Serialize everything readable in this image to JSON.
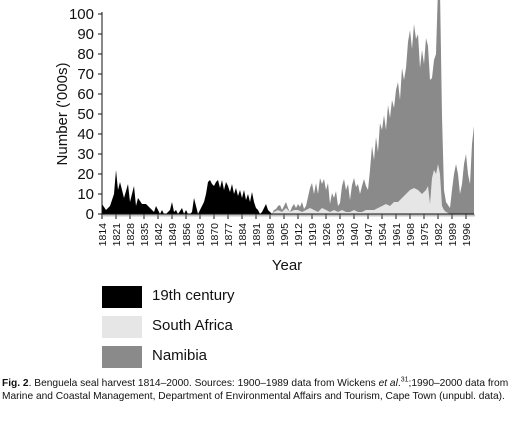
{
  "chart_data": {
    "type": "area",
    "title": "",
    "xlabel": "Year",
    "ylabel": "Number ('000s)",
    "xlim": [
      1814,
      2000
    ],
    "ylim": [
      0,
      100
    ],
    "yticks": [
      0,
      10,
      20,
      30,
      40,
      50,
      60,
      70,
      80,
      90,
      100
    ],
    "xticks": [
      1814,
      1821,
      1828,
      1835,
      1842,
      1849,
      1856,
      1863,
      1870,
      1877,
      1884,
      1891,
      1898,
      1905,
      1912,
      1919,
      1926,
      1933,
      1940,
      1947,
      1954,
      1961,
      1968,
      1975,
      1982,
      1989,
      1996
    ],
    "legend_position": "below",
    "stacked": true,
    "series": [
      {
        "name": "19th century",
        "color": "#000000",
        "x": [
          1814,
          1816,
          1818,
          1820,
          1821,
          1822,
          1823,
          1825,
          1827,
          1828,
          1830,
          1831,
          1832,
          1834,
          1836,
          1838,
          1840,
          1841,
          1843,
          1844,
          1845,
          1846,
          1847,
          1848,
          1849,
          1850,
          1851,
          1852,
          1854,
          1855,
          1856,
          1857,
          1858,
          1859,
          1860,
          1862,
          1863,
          1865,
          1866,
          1867,
          1868,
          1869,
          1870,
          1871,
          1872,
          1873,
          1874,
          1875,
          1876,
          1877,
          1878,
          1879,
          1880,
          1881,
          1882,
          1883,
          1884,
          1885,
          1886,
          1887,
          1888,
          1889,
          1890,
          1891,
          1892,
          1893,
          1894,
          1895,
          1896,
          1897,
          1898,
          1899
        ],
        "values": [
          5,
          2,
          4,
          10,
          22,
          12,
          16,
          8,
          15,
          6,
          14,
          4,
          8,
          5,
          5,
          3,
          1,
          4,
          0,
          2,
          0,
          0,
          1,
          2,
          6,
          1,
          2,
          0,
          3,
          0,
          2,
          0,
          0,
          1,
          8,
          0,
          2,
          6,
          10,
          16,
          17,
          15,
          14,
          16,
          17,
          13,
          17,
          12,
          16,
          14,
          11,
          15,
          10,
          13,
          9,
          12,
          8,
          12,
          7,
          10,
          6,
          11,
          6,
          3,
          2,
          0,
          1,
          3,
          5,
          2,
          1,
          0
        ]
      },
      {
        "name": "South Africa",
        "color": "#e6e6e6",
        "x": [
          1899,
          1900,
          1902,
          1904,
          1906,
          1908,
          1910,
          1912,
          1914,
          1916,
          1918,
          1920,
          1922,
          1924,
          1926,
          1928,
          1930,
          1932,
          1934,
          1936,
          1938,
          1940,
          1942,
          1944,
          1946,
          1948,
          1950,
          1952,
          1954,
          1956,
          1958,
          1960,
          1962,
          1964,
          1966,
          1968,
          1970,
          1972,
          1974,
          1976,
          1977,
          1978,
          1979,
          1980,
          1981,
          1982,
          1983,
          1984,
          1985,
          1986,
          1988,
          1990,
          1992,
          1994,
          1996,
          1998,
          2000
        ],
        "values": [
          0,
          1,
          2,
          1,
          3,
          1,
          2,
          2,
          1,
          2,
          3,
          2,
          1,
          3,
          2,
          1,
          2,
          1,
          2,
          1,
          1,
          2,
          1,
          1,
          2,
          2,
          2,
          3,
          4,
          5,
          4,
          6,
          6,
          8,
          10,
          12,
          13,
          12,
          10,
          12,
          14,
          5,
          18,
          22,
          20,
          25,
          20,
          4,
          2,
          1,
          0,
          0,
          0,
          0,
          0,
          0,
          0
        ]
      },
      {
        "name": "Namibia",
        "color": "#8a8a8a",
        "x": [
          1899,
          1900,
          1901,
          1902,
          1903,
          1904,
          1905,
          1906,
          1907,
          1908,
          1909,
          1910,
          1911,
          1912,
          1913,
          1914,
          1915,
          1916,
          1917,
          1918,
          1919,
          1920,
          1921,
          1922,
          1923,
          1924,
          1925,
          1926,
          1927,
          1928,
          1929,
          1930,
          1931,
          1932,
          1933,
          1934,
          1935,
          1936,
          1937,
          1938,
          1939,
          1940,
          1941,
          1942,
          1943,
          1944,
          1945,
          1946,
          1947,
          1948,
          1949,
          1950,
          1951,
          1952,
          1953,
          1954,
          1955,
          1956,
          1957,
          1958,
          1959,
          1960,
          1961,
          1962,
          1963,
          1964,
          1965,
          1966,
          1967,
          1968,
          1969,
          1970,
          1971,
          1972,
          1973,
          1974,
          1975,
          1976,
          1977,
          1978,
          1979,
          1980,
          1981,
          1982,
          1983,
          1984,
          1985,
          1986,
          1987,
          1988,
          1989,
          1990,
          1991,
          1992,
          1993,
          1994,
          1995,
          1996,
          1997,
          1998,
          1999,
          2000
        ],
        "values": [
          0,
          1,
          1,
          2,
          3,
          1,
          2,
          3,
          1,
          0,
          2,
          3,
          1,
          3,
          2,
          5,
          1,
          2,
          6,
          10,
          13,
          8,
          14,
          9,
          16,
          12,
          15,
          10,
          14,
          4,
          9,
          6,
          10,
          3,
          4,
          12,
          16,
          11,
          14,
          6,
          13,
          16,
          12,
          14,
          9,
          13,
          16,
          12,
          10,
          20,
          32,
          25,
          36,
          28,
          42,
          38,
          45,
          37,
          50,
          44,
          52,
          47,
          56,
          60,
          50,
          65,
          58,
          63,
          75,
          80,
          70,
          82,
          75,
          78,
          62,
          72,
          64,
          76,
          70,
          62,
          50,
          55,
          60,
          88,
          92,
          45,
          10,
          5,
          4,
          3,
          12,
          20,
          25,
          20,
          10,
          15,
          25,
          30,
          20,
          15,
          35,
          44
        ]
      }
    ]
  },
  "caption": {
    "fig_label": "Fig. 2",
    "text_1": ". Benguela seal harvest 1814–2000. Sources: 1900–1989 data from Wickens ",
    "et_al": "et al",
    "text_2": ".",
    "ref": "31",
    "text_3": ";1990–2000 data from Marine and Coastal Management, Department of Environmental Affairs and Tourism, Cape Town (unpubl. data)."
  }
}
